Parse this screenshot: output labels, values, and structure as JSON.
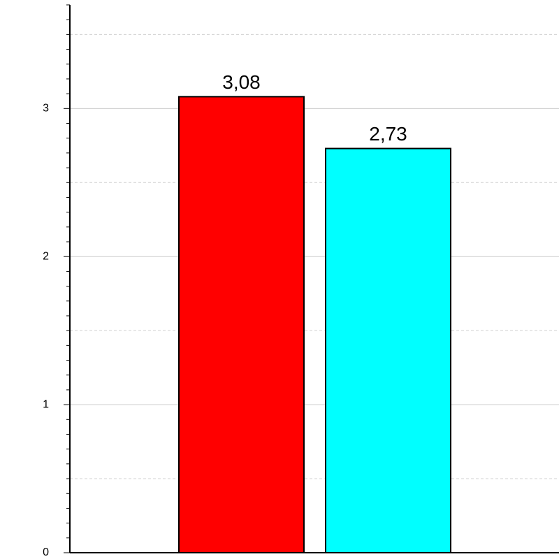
{
  "chart_data": {
    "type": "bar",
    "categories": [
      null,
      null
    ],
    "values": [
      3.08,
      2.73
    ],
    "value_labels": [
      "3,08",
      "2,73"
    ],
    "colors": [
      "#ff0000",
      "#00ffff"
    ],
    "ylim": [
      0,
      3.7
    ],
    "yticks": [
      0,
      1,
      2,
      3
    ],
    "minor_grid": [
      0.5,
      1.5,
      2.5,
      3.5
    ],
    "minor_yticks": [
      0.1,
      0.2,
      0.3,
      0.4,
      0.5,
      0.6,
      0.7,
      0.8,
      0.9,
      1.1,
      1.2,
      1.3,
      1.4,
      1.5,
      1.6,
      1.7,
      1.8,
      1.9,
      2.1,
      2.2,
      2.3,
      2.4,
      2.5,
      2.6,
      2.7,
      2.8,
      2.9,
      3.1,
      3.2,
      3.3,
      3.4,
      3.5,
      3.6,
      3.7
    ],
    "grid": true
  }
}
